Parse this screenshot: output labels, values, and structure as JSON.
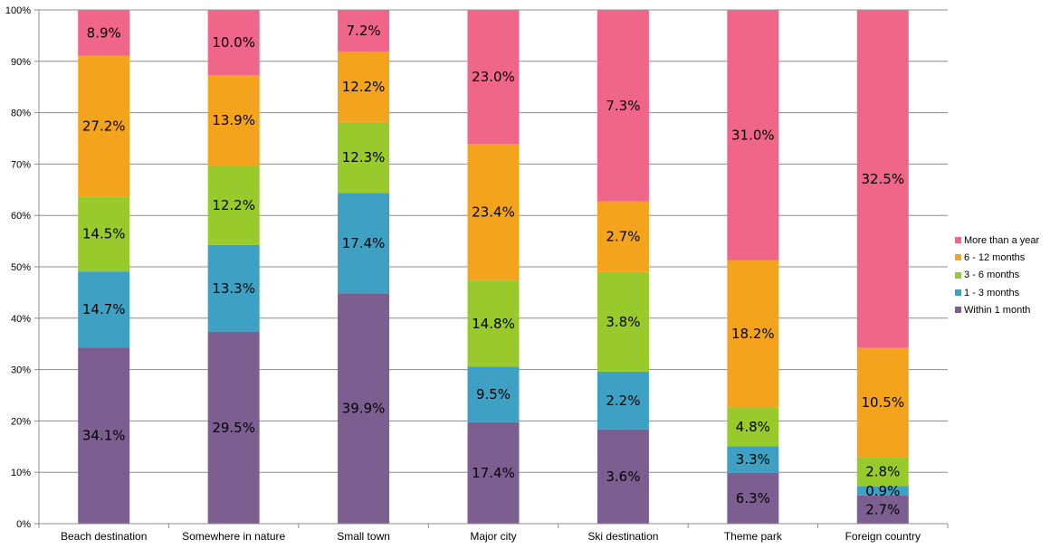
{
  "chart_data": {
    "type": "bar",
    "stacked": true,
    "percent": true,
    "categories": [
      "Beach destination",
      "Somewhere in nature",
      "Small town",
      "Major city",
      "Ski destination",
      "Theme park",
      "Foreign country"
    ],
    "y_ticks": [
      "0%",
      "10%",
      "20%",
      "30%",
      "40%",
      "50%",
      "60%",
      "70%",
      "80%",
      "90%",
      "100%"
    ],
    "ylim": [
      0,
      100
    ],
    "grid": true,
    "legend_position": "right",
    "series": [
      {
        "name": "Within 1 month",
        "color": "#7C5F90",
        "values": [
          34.1,
          29.5,
          39.9,
          17.4,
          3.6,
          6.3,
          2.7
        ],
        "labels": [
          "34.1%",
          "29.5%",
          "39.9%",
          "17.4%",
          "3.6%",
          "6.3%",
          "2.7%"
        ]
      },
      {
        "name": "1 - 3 months",
        "color": "#3EA1C3",
        "values": [
          14.7,
          13.3,
          17.4,
          9.5,
          2.2,
          3.3,
          0.9
        ],
        "labels": [
          "14.7%",
          "13.3%",
          "17.4%",
          "9.5%",
          "2.2%",
          "3.3%",
          "0.9%"
        ]
      },
      {
        "name": "3 - 6 months",
        "color": "#97CA2A",
        "values": [
          14.5,
          12.2,
          12.3,
          14.8,
          3.8,
          4.8,
          2.8
        ],
        "labels": [
          "14.5%",
          "12.2%",
          "12.3%",
          "14.8%",
          "3.8%",
          "4.8%",
          "2.8%"
        ]
      },
      {
        "name": "6 - 12 months",
        "color": "#F4A41C",
        "values": [
          27.2,
          13.9,
          12.2,
          23.4,
          2.7,
          18.2,
          10.5
        ],
        "labels": [
          "27.2%",
          "13.9%",
          "12.2%",
          "23.4%",
          "2.7%",
          "18.2%",
          "10.5%"
        ]
      },
      {
        "name": "More than a year",
        "color": "#F0668B",
        "values": [
          8.9,
          10.0,
          7.2,
          23.0,
          7.3,
          31.0,
          32.5
        ],
        "labels": [
          "8.9%",
          "10.0%",
          "7.2%",
          "23.0%",
          "7.3%",
          "31.0%",
          "32.5%"
        ]
      }
    ]
  },
  "legend_order": [
    "More than a year",
    "6 - 12 months",
    "3 - 6 months",
    "1 - 3 months",
    "Within 1 month"
  ]
}
